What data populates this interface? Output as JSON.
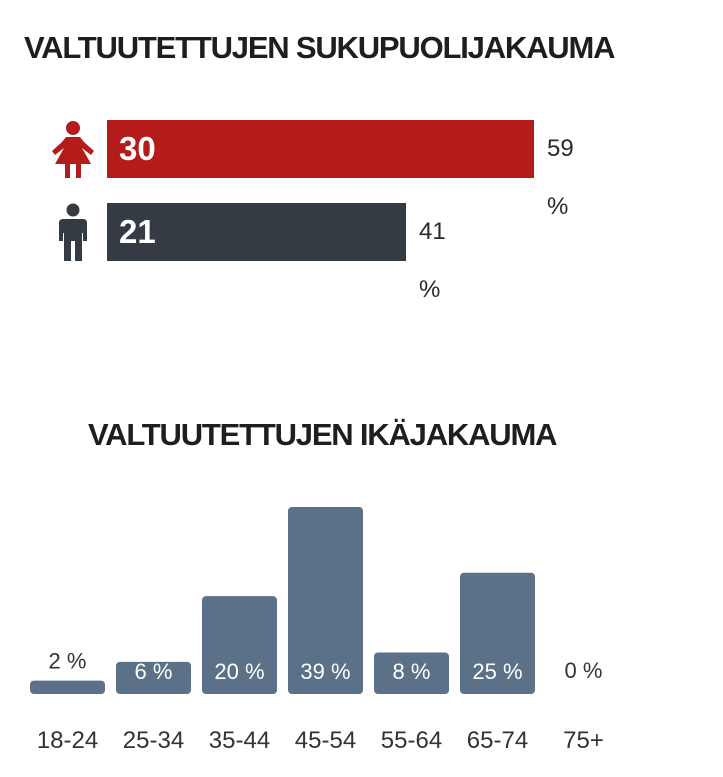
{
  "gender_title": "VALTUUTETTUJEN SUKUPUOLIJAKAUMA",
  "gender": {
    "rows": [
      {
        "count_label": "30",
        "pct_label": "59 %",
        "value": 30,
        "percent": 59,
        "color": "#b41c1c",
        "icon": "female-person-icon"
      },
      {
        "count_label": "21",
        "pct_label": "41 %",
        "value": 21,
        "percent": 41,
        "color": "#343b43",
        "icon": "male-person-icon"
      }
    ]
  },
  "age_title": "VALTUUTETTUJEN IKÄJAKAUMA",
  "chart_data": [
    {
      "type": "bar",
      "orientation": "horizontal",
      "title": "VALTUUTETTUJEN SUKUPUOLIJAKAUMA",
      "categories": [
        "female-person-icon",
        "male-person-icon"
      ],
      "values": [
        30,
        21
      ],
      "value_labels": [
        "30",
        "21"
      ],
      "percent_labels": [
        "59 %",
        "41 %"
      ],
      "colors": [
        "#b41c1c",
        "#343b43"
      ],
      "legend": "none",
      "grid": false
    },
    {
      "type": "bar",
      "title": "VALTUUTETTUJEN IKÄJAKAUMA",
      "categories": [
        "18-24",
        "25-34",
        "35-44",
        "45-54",
        "55-64",
        "65-74",
        "75+"
      ],
      "values": [
        2,
        6,
        20,
        39,
        8,
        25,
        0
      ],
      "labels": [
        "2 %",
        "6 %",
        "20 %",
        "39 %",
        "8 %",
        "25 %",
        "0 %"
      ],
      "bar_color": "#5a7188",
      "ylim": [
        0,
        40
      ],
      "legend": "none",
      "grid": false
    }
  ]
}
